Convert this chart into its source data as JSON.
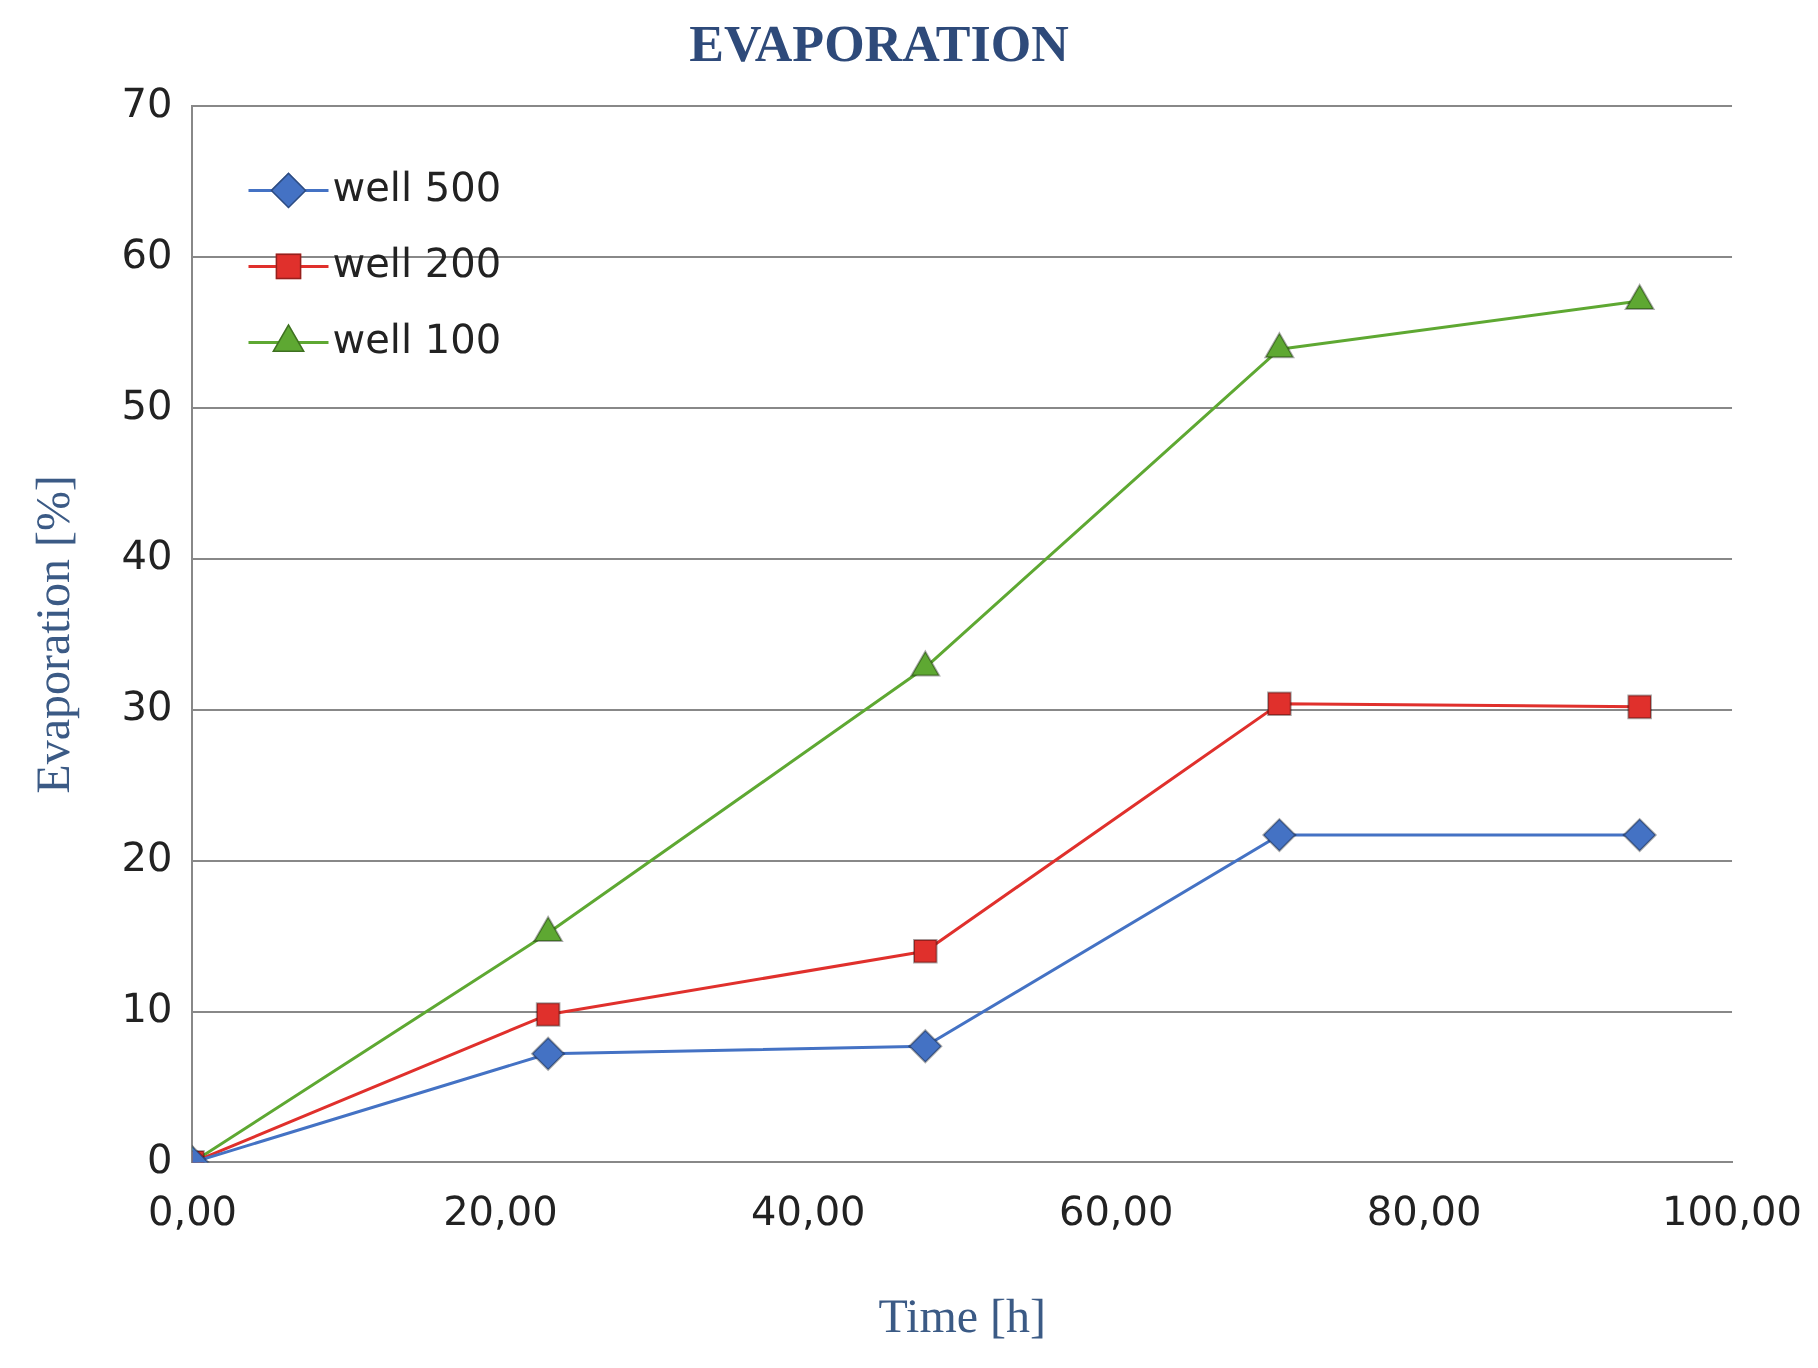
{
  "chart_data": {
    "type": "line",
    "title": "EVAPORATION",
    "xlabel": "Time [h]",
    "ylabel": "Evaporation [%]",
    "x": [
      0,
      23.1,
      47.6,
      70.6,
      94.0
    ],
    "series": [
      {
        "name": "well 500",
        "color": "#4472c4",
        "marker": "diamond",
        "values": [
          0,
          7.2,
          7.7,
          21.7,
          21.7
        ]
      },
      {
        "name": "well 200",
        "color": "#e0302c",
        "marker": "square",
        "values": [
          0,
          9.8,
          14.0,
          30.4,
          30.2
        ]
      },
      {
        "name": "well 100",
        "color": "#5ea832",
        "marker": "triangle",
        "values": [
          0,
          15.2,
          32.8,
          53.9,
          57.1
        ]
      }
    ],
    "xlim": [
      0,
      100
    ],
    "xticks": [
      {
        "value": 0,
        "label": "0,00"
      },
      {
        "value": 20,
        "label": "20,00"
      },
      {
        "value": 40,
        "label": "40,00"
      },
      {
        "value": 60,
        "label": "60,00"
      },
      {
        "value": 80,
        "label": "80,00"
      },
      {
        "value": 100,
        "label": "100,00"
      }
    ],
    "ylim": [
      0,
      70
    ],
    "yticks": [
      0,
      10,
      20,
      30,
      40,
      50,
      60,
      70
    ],
    "grid": "y",
    "legend": "top left"
  }
}
